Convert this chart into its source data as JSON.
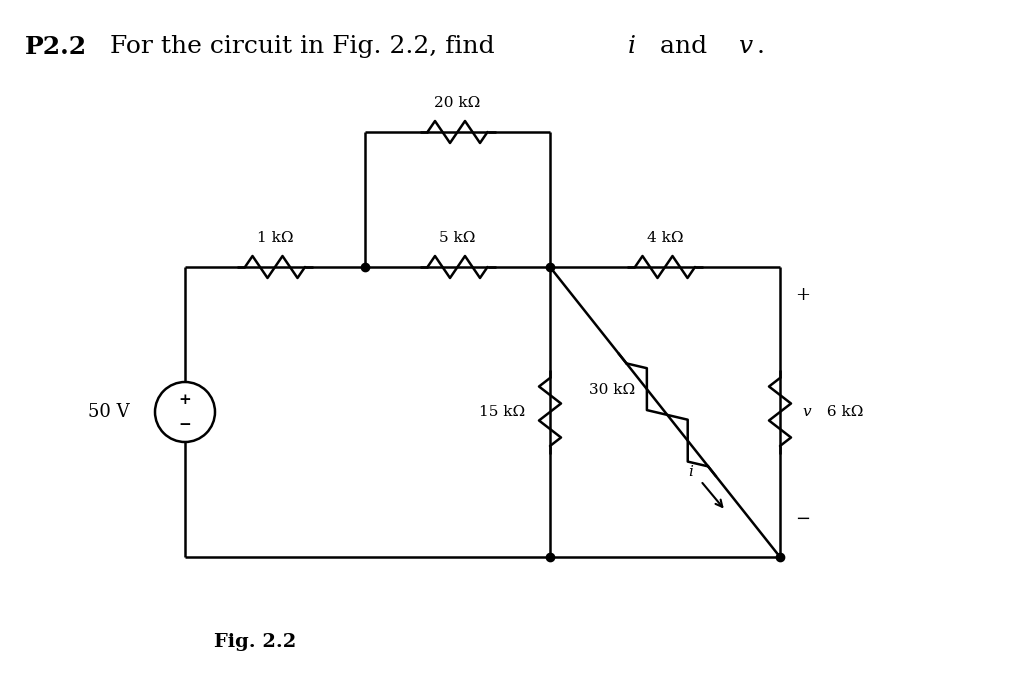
{
  "background_color": "#ffffff",
  "line_color": "#000000",
  "line_width": 1.8,
  "resistor_labels": {
    "R1": "1 kΩ",
    "R2": "5 kΩ",
    "R3": "20 kΩ",
    "R4": "15 kΩ",
    "R5": "4 kΩ",
    "R6": "30 kΩ",
    "R7": "6 kΩ"
  },
  "source_label": "50 V",
  "fig_label": "Fig. 2.2",
  "title_p22": "P2.2",
  "title_rest": "  For the circuit in Fig. 2.2, find ",
  "title_i": "i",
  "title_and": " and ",
  "title_v": "v",
  "title_dot": ".",
  "plus_sign": "+",
  "minus_sign": "−",
  "current_label": "i",
  "voltage_var": "v"
}
